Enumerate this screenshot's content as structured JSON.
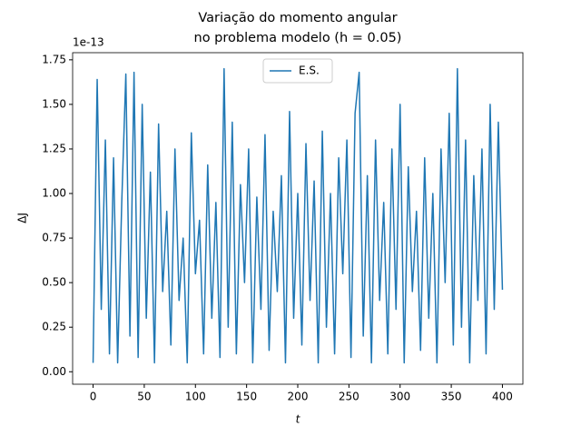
{
  "chart_data": {
    "type": "line",
    "title": [
      "Variação do momento angular",
      "no problema modelo (h = 0.05)"
    ],
    "x_label": "t",
    "y_label": "ΔJ",
    "y_offset_text": "1e-13",
    "x": [
      0,
      4,
      8,
      12,
      16,
      20,
      24,
      28,
      32,
      36,
      40,
      44,
      48,
      52,
      56,
      60,
      64,
      68,
      72,
      76,
      80,
      84,
      88,
      92,
      96,
      100,
      104,
      108,
      112,
      116,
      120,
      124,
      128,
      132,
      136,
      140,
      144,
      148,
      152,
      156,
      160,
      164,
      168,
      172,
      176,
      180,
      184,
      188,
      192,
      196,
      200,
      204,
      208,
      212,
      216,
      220,
      224,
      228,
      232,
      236,
      240,
      244,
      248,
      252,
      256,
      260,
      264,
      268,
      272,
      276,
      280,
      284,
      288,
      292,
      296,
      300,
      304,
      308,
      312,
      316,
      320,
      324,
      328,
      332,
      336,
      340,
      344,
      348,
      352,
      356,
      360,
      364,
      368,
      372,
      376,
      380,
      384,
      388,
      392,
      396,
      400
    ],
    "series": [
      {
        "name": "E.S.",
        "color": "#1f77b4",
        "values": [
          0.05,
          1.64,
          0.35,
          1.3,
          0.1,
          1.2,
          0.05,
          0.95,
          1.67,
          0.2,
          1.68,
          0.08,
          1.5,
          0.3,
          1.12,
          0.05,
          1.39,
          0.45,
          0.9,
          0.15,
          1.25,
          0.4,
          0.75,
          0.05,
          1.34,
          0.55,
          0.85,
          0.1,
          1.16,
          0.3,
          0.95,
          0.08,
          1.7,
          0.25,
          1.4,
          0.1,
          1.05,
          0.5,
          1.25,
          0.05,
          0.98,
          0.35,
          1.33,
          0.12,
          0.9,
          0.45,
          1.1,
          0.05,
          1.46,
          0.3,
          1.0,
          0.15,
          1.28,
          0.4,
          1.07,
          0.05,
          1.35,
          0.25,
          1.0,
          0.1,
          1.2,
          0.55,
          1.3,
          0.08,
          1.45,
          1.68,
          0.2,
          1.1,
          0.05,
          1.3,
          0.4,
          0.95,
          0.1,
          1.25,
          0.35,
          1.5,
          0.05,
          1.15,
          0.45,
          0.9,
          0.12,
          1.2,
          0.3,
          1.0,
          0.05,
          1.25,
          0.5,
          1.45,
          0.15,
          1.7,
          0.25,
          1.3,
          0.05,
          1.1,
          0.4,
          1.25,
          0.1,
          1.5,
          0.35,
          1.4,
          0.46
        ]
      }
    ],
    "xlim": [
      -20,
      420
    ],
    "ylim": [
      -0.07,
      1.79
    ],
    "xticks": [
      0,
      50,
      100,
      150,
      200,
      250,
      300,
      350,
      400
    ],
    "yticks": [
      {
        "value": 0,
        "label": "0.00"
      },
      {
        "value": 0.25,
        "label": "0.25"
      },
      {
        "value": 0.5,
        "label": "0.50"
      },
      {
        "value": 0.75,
        "label": "0.75"
      },
      {
        "value": 1,
        "label": "1.00"
      },
      {
        "value": 1.25,
        "label": "1.25"
      },
      {
        "value": 1.5,
        "label": "1.50"
      },
      {
        "value": 1.75,
        "label": "1.75"
      }
    ],
    "legend": "upper center"
  }
}
